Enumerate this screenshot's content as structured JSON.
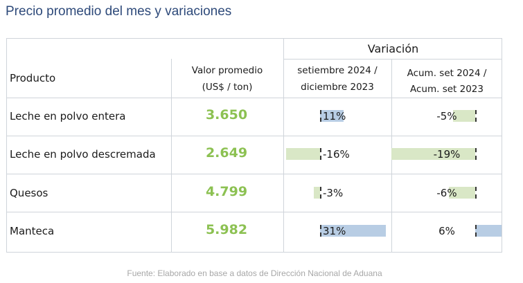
{
  "title": "Precio promedio del mes y variaciones",
  "header": {
    "variation": "Variación",
    "product": "Producto",
    "value_line1": "Valor promedio",
    "value_line2": "(US$ / ton)",
    "col_a_line1": "setiembre 2024 /",
    "col_a_line2": "diciembre 2023",
    "col_b_line1": "Acum. set 2024 /",
    "col_b_line2": "Acum. set 2023"
  },
  "colors": {
    "positive": "#b8cde4",
    "negative": "#d9e7c6",
    "value": "#8cc152"
  },
  "rows": [
    {
      "product": "Leche en polvo entera",
      "value": "3.650",
      "var_a": "11%",
      "var_a_num": 11,
      "var_b": "-5%",
      "var_b_num": -5
    },
    {
      "product": "Leche en polvo descremada",
      "value": "2.649",
      "var_a": "-16%",
      "var_a_num": -16,
      "var_b": "-19%",
      "var_b_num": -19
    },
    {
      "product": "Quesos",
      "value": "4.799",
      "var_a": "-3%",
      "var_a_num": -3,
      "var_b": "-6%",
      "var_b_num": -6
    },
    {
      "product": "Manteca",
      "value": "5.982",
      "var_a": "31%",
      "var_a_num": 31,
      "var_b": "6%",
      "var_b_num": 6
    }
  ],
  "footer": "Fuente: Elaborado en base a datos de Dirección Nacional de Aduana"
}
